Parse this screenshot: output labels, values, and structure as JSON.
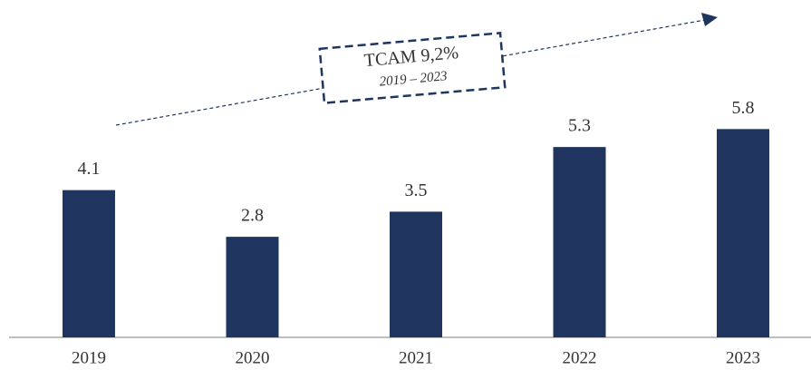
{
  "chart_data": {
    "type": "bar",
    "categories": [
      "2019",
      "2020",
      "2021",
      "2022",
      "2023"
    ],
    "values": [
      4.1,
      2.8,
      3.5,
      5.3,
      5.8
    ],
    "color": "#1f3560",
    "annotation": {
      "title": "TCAM 9,2%",
      "subtitle": "2019 – 2023"
    }
  }
}
